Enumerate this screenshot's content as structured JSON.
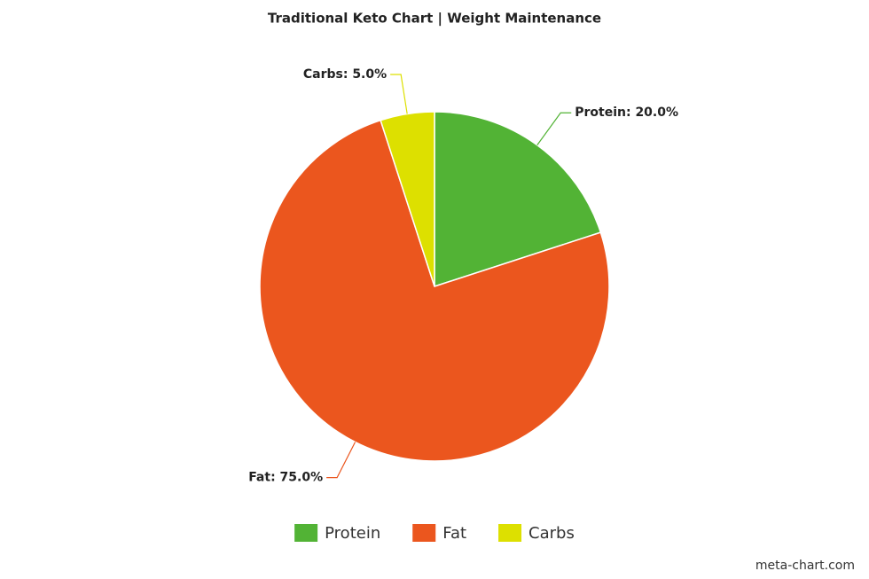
{
  "chart_data": {
    "type": "pie",
    "title": "Traditional Keto Chart | Weight Maintenance",
    "categories": [
      "Protein",
      "Fat",
      "Carbs"
    ],
    "values": [
      20,
      75,
      5
    ],
    "value_labels": [
      "Protein: 20.0%",
      "Fat: 75.0%",
      "Carbs: 5.0%"
    ],
    "colors": [
      "#52b335",
      "#eb561e",
      "#dde000"
    ],
    "legend": "bottom",
    "credit": "meta-chart.com"
  }
}
